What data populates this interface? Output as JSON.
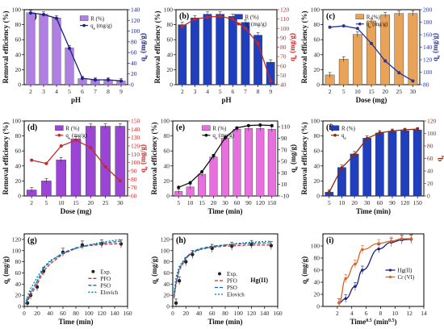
{
  "chart_data": [
    {
      "type": "bar",
      "panel": "(a)",
      "x": [
        2,
        3,
        4,
        5,
        6,
        7,
        8,
        9
      ],
      "xlabel": "pH",
      "ylabel": "Removal efficiency (%)",
      "y2label": "q_e (mg/g)",
      "ylim": [
        0,
        100
      ],
      "y2lim": [
        0,
        140
      ],
      "series": [
        {
          "name": "R (%)",
          "kind": "bar",
          "axis": "left",
          "color": "#b07fe3",
          "values": [
            96,
            94,
            89,
            49,
            8,
            6,
            6,
            5
          ]
        },
        {
          "name": "qe (mg/g)",
          "kind": "line",
          "axis": "right",
          "color": "#1a237e",
          "values": [
            134,
            131,
            124,
            68,
            12,
            9,
            9,
            7
          ]
        }
      ]
    },
    {
      "type": "bar",
      "panel": "(b)",
      "x": [
        2,
        3,
        4,
        5,
        6,
        7,
        8,
        9
      ],
      "xlabel": "pH",
      "ylabel": "Removal efficiency (%)",
      "y2label": "q_e (mg/g)",
      "ylim": [
        0,
        100
      ],
      "y2lim": [
        40,
        120
      ],
      "series": [
        {
          "name": "R (%)",
          "kind": "bar",
          "axis": "left",
          "color": "#1f3fbf",
          "values": [
            80,
            89,
            94,
            94,
            91,
            83,
            66,
            30
          ]
        },
        {
          "name": "qe (mg/g)",
          "kind": "line",
          "axis": "right",
          "color": "#c62828",
          "values": [
            102,
            110,
            112,
            113,
            110,
            100,
            84,
            44
          ]
        }
      ]
    },
    {
      "type": "bar",
      "panel": "(c)",
      "x": [
        "2",
        "5",
        "10",
        "15",
        "20",
        "25",
        "30"
      ],
      "xlabel": "Dose (mg)",
      "ylabel": "Removal efficiency (%)",
      "y2label": "q_e (mg/g)",
      "ylim": [
        0,
        100
      ],
      "y2lim": [
        80,
        200
      ],
      "series": [
        {
          "name": "R (%)",
          "kind": "bar",
          "axis": "left",
          "color": "#e8a358",
          "values": [
            13,
            34,
            67,
            85,
            93,
            95,
            95
          ]
        },
        {
          "name": "qe (mg/g)",
          "kind": "line",
          "axis": "right",
          "color": "#283593",
          "values": [
            172,
            174,
            170,
            146,
            118,
            99,
            86
          ]
        }
      ]
    },
    {
      "type": "bar",
      "panel": "(d)",
      "x": [
        "2",
        "5",
        "10",
        "15",
        "20",
        "25",
        "30"
      ],
      "xlabel": "Dose (mg)",
      "ylabel": "Removal efficiency (%)",
      "y2label": "q_e (mg/g)",
      "ylim": [
        0,
        100
      ],
      "y2lim": [
        60,
        150
      ],
      "series": [
        {
          "name": "R (%)",
          "kind": "bar",
          "axis": "left",
          "color": "#9b45d6",
          "values": [
            8,
            20,
            48,
            76,
            93,
            93,
            93
          ]
        },
        {
          "name": "qe (mg/g)",
          "kind": "line",
          "axis": "right",
          "color": "#c62828",
          "values": [
            103,
            99,
            120,
            127,
            118,
            95,
            78
          ]
        }
      ]
    },
    {
      "type": "bar",
      "panel": "(e)",
      "x": [
        "5",
        "10",
        "15",
        "20",
        "30",
        "60",
        "90",
        "120",
        "150"
      ],
      "xlabel": "Time (min)",
      "ylabel": "Removal efficiency (%)",
      "y2label": "q_e (mg/g)",
      "ylim": [
        0,
        100
      ],
      "y2lim": [
        -10,
        120
      ],
      "series": [
        {
          "name": "R (%)",
          "kind": "bar",
          "axis": "left",
          "color": "#e86fe0",
          "values": [
            6,
            12,
            29,
            52,
            77,
            89,
            90,
            90,
            89
          ]
        },
        {
          "name": "qe (mg/g)",
          "kind": "line",
          "axis": "right",
          "color": "#111111",
          "values": [
            5,
            13,
            32,
            60,
            91,
            108,
            112,
            113,
            112
          ]
        }
      ]
    },
    {
      "type": "bar",
      "panel": "(f)",
      "x": [
        "5",
        "10",
        "20",
        "30",
        "60",
        "90",
        "120",
        "150"
      ],
      "xlabel": "Time (min)",
      "ylabel": "Removal efficiency (%)",
      "y2label": "q_e",
      "ylim": [
        0,
        100
      ],
      "y2lim": [
        0,
        120
      ],
      "series": [
        {
          "name": "R (%)",
          "kind": "bar",
          "axis": "left",
          "color": "#1f3fbf",
          "values": [
            5,
            38,
            56,
            77,
            84,
            86,
            87,
            88
          ]
        },
        {
          "name": "qe",
          "kind": "line",
          "axis": "right",
          "color": "#8d2a0e",
          "values": [
            6,
            45,
            66,
            92,
            101,
            104,
            106,
            107
          ]
        }
      ]
    },
    {
      "type": "scatter",
      "panel": "(g)",
      "xlabel": "Time (min)",
      "ylabel": "q_t (mg/g)",
      "xlim": [
        0,
        160
      ],
      "ylim": [
        0,
        130
      ],
      "series": [
        {
          "name": "Exp.",
          "kind": "points",
          "color": "#222222",
          "x": [
            5,
            10,
            20,
            30,
            60,
            90,
            120,
            150
          ],
          "y": [
            6,
            20,
            35,
            63,
            97,
            110,
            112,
            112
          ]
        },
        {
          "name": "PFO",
          "kind": "curve",
          "color": "#d32f2f",
          "dash": "4,2",
          "x": [
            2,
            5,
            10,
            20,
            30,
            40,
            60,
            80,
            100,
            120,
            150
          ],
          "y": [
            4,
            10,
            20,
            40,
            63,
            76,
            94,
            104,
            109,
            111,
            113
          ]
        },
        {
          "name": "PSO",
          "kind": "curve",
          "color": "#1565c0",
          "dash": "4,2",
          "x": [
            2,
            5,
            10,
            20,
            30,
            40,
            60,
            80,
            100,
            120,
            150
          ],
          "y": [
            5,
            12,
            25,
            45,
            68,
            80,
            96,
            105,
            110,
            113,
            117
          ]
        },
        {
          "name": "Elovich",
          "kind": "curve",
          "color": "#00838f",
          "dash": "2,2",
          "x": [
            2,
            5,
            10,
            20,
            30,
            40,
            60,
            80,
            100,
            120,
            150
          ],
          "y": [
            4,
            18,
            32,
            52,
            70,
            82,
            95,
            104,
            110,
            115,
            120
          ]
        }
      ]
    },
    {
      "type": "scatter",
      "panel": "(h)",
      "annotation": "Hg(II)",
      "xlabel": "Time (min)",
      "ylabel": "q_t (mg/g)",
      "xlim": [
        0,
        160
      ],
      "ylim": [
        0,
        130
      ],
      "series": [
        {
          "name": "Exp.",
          "kind": "points",
          "color": "#222222",
          "x": [
            5,
            10,
            20,
            30,
            60,
            90,
            120,
            150
          ],
          "y": [
            6,
            46,
            80,
            93,
            104,
            108,
            111,
            109
          ]
        },
        {
          "name": "PFO",
          "kind": "curve",
          "color": "#d32f2f",
          "dash": "4,2",
          "x": [
            2,
            5,
            10,
            20,
            30,
            40,
            60,
            80,
            100,
            120,
            150
          ],
          "y": [
            15,
            40,
            65,
            86,
            97,
            102,
            106,
            108,
            109,
            110,
            110
          ]
        },
        {
          "name": "PSO",
          "kind": "curve",
          "color": "#1565c0",
          "dash": "4,2",
          "x": [
            2,
            5,
            10,
            20,
            30,
            40,
            60,
            80,
            100,
            120,
            150
          ],
          "y": [
            18,
            44,
            68,
            88,
            98,
            103,
            108,
            110,
            112,
            113,
            114
          ]
        },
        {
          "name": "Elovich",
          "kind": "curve",
          "color": "#00838f",
          "dash": "2,2",
          "x": [
            2,
            5,
            10,
            20,
            30,
            40,
            60,
            80,
            100,
            120,
            150
          ],
          "y": [
            25,
            52,
            72,
            88,
            96,
            101,
            107,
            110,
            113,
            115,
            117
          ]
        }
      ]
    },
    {
      "type": "line",
      "panel": "(i)",
      "xlabel": "Time^0.5 (min^0.5)",
      "ylabel": "q_t (mg/g)",
      "xlim": [
        0,
        14
      ],
      "ylim": [
        0,
        120
      ],
      "series": [
        {
          "name": "Hg(II)",
          "color": "#1a237e",
          "x": [
            2.24,
            3.16,
            4.47,
            5.48,
            7.75,
            9.49,
            10.95,
            12.25
          ],
          "y": [
            6,
            13,
            33,
            60,
            95,
            106,
            110,
            111
          ]
        },
        {
          "name": "Cr (VI)",
          "color": "#d9662c",
          "x": [
            2.24,
            3.16,
            4.47,
            5.48,
            7.75,
            9.49,
            10.95,
            12.25
          ],
          "y": [
            6,
            46,
            70,
            94,
            104,
            108,
            112,
            112
          ]
        }
      ]
    }
  ]
}
